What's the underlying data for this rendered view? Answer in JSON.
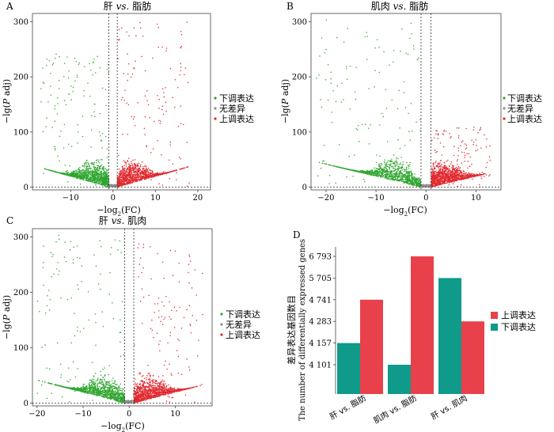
{
  "figure": {
    "panels": [
      {
        "letter": "A",
        "title_pre": "肝 ",
        "title_em": "vs.",
        "title_post": " 脂肪"
      },
      {
        "letter": "B",
        "title_pre": "肌肉 ",
        "title_em": "vs.",
        "title_post": " 脂肪"
      },
      {
        "letter": "C",
        "title_pre": "肝 ",
        "title_em": "vs.",
        "title_post": " 肌肉"
      },
      {
        "letter": "D"
      }
    ],
    "volcano_ylabel_pre": "−lg(",
    "volcano_ylabel_em": "P",
    "volcano_ylabel_post": " adj)",
    "volcano_xlabel_pre": "−log",
    "volcano_xlabel_sub": "2",
    "volcano_xlabel_post": "(FC)",
    "volcano_legend": [
      "下调表达",
      "无差异",
      "上调表达"
    ],
    "bar_ylabel_cn": "差异表达基因数目",
    "bar_ylabel_en": "The number of differentially expressed genes",
    "bar_legend": [
      "上调表达",
      "下调表达"
    ]
  },
  "colors": {
    "down": "#2fa62f",
    "none": "#8c8c8c",
    "up": "#e0292f",
    "bar_up": "#e8414b",
    "bar_down": "#0f9a8a"
  },
  "chart_data": [
    {
      "type": "scatter",
      "title": "肝 vs. 脂肪",
      "xlabel": "−log2(FC)",
      "ylabel": "−lg(P adj)",
      "xlim": [
        -19,
        23
      ],
      "ylim": [
        -5,
        315
      ],
      "xticks": [
        -10,
        0,
        10,
        20
      ],
      "yticks": [
        0,
        100,
        200,
        300
      ],
      "thresholds": {
        "x": [
          -1,
          1
        ],
        "y": 0
      },
      "legend": [
        "下调表达",
        "无差异",
        "上调表达"
      ],
      "legend_position": "right",
      "points": {
        "down": {
          "x_range": [
            -17,
            -1
          ],
          "peak_x": -4,
          "max_y": 245
        },
        "up": {
          "x_range": [
            1,
            18
          ],
          "peak_x": 4,
          "max_y": 300
        },
        "none": {
          "x_range": [
            -1,
            1
          ],
          "max_y": 5
        }
      }
    },
    {
      "type": "scatter",
      "title": "肌肉 vs. 脂肪",
      "xlabel": "−log2(FC)",
      "ylabel": "−lg(P adj)",
      "xlim": [
        -23,
        15
      ],
      "ylim": [
        -5,
        315
      ],
      "xticks": [
        -20,
        -10,
        0,
        10
      ],
      "yticks": [
        0,
        100,
        200,
        300
      ],
      "thresholds": {
        "x": [
          -1,
          1
        ],
        "y": 0
      },
      "legend": [
        "下调表达",
        "无差异",
        "上调表达"
      ],
      "legend_position": "right",
      "points": {
        "down": {
          "x_range": [
            -22,
            -1
          ],
          "peak_x": -6,
          "max_y": 305
        },
        "up": {
          "x_range": [
            1,
            13
          ],
          "peak_x": 3,
          "max_y": 110
        },
        "none": {
          "x_range": [
            -1,
            1
          ],
          "max_y": 5
        }
      }
    },
    {
      "type": "scatter",
      "title": "肝 vs. 肌肉",
      "xlabel": "−log2(FC)",
      "ylabel": "−lg(P adj)",
      "xlim": [
        -21,
        18
      ],
      "ylim": [
        -5,
        315
      ],
      "xticks": [
        -20,
        -10,
        0,
        10
      ],
      "yticks": [
        0,
        100,
        200,
        300
      ],
      "thresholds": {
        "x": [
          -1,
          1
        ],
        "y": 0
      },
      "legend": [
        "下调表达",
        "无差异",
        "上调表达"
      ],
      "legend_position": "right",
      "points": {
        "down": {
          "x_range": [
            -20,
            -1
          ],
          "peak_x": -5,
          "max_y": 305
        },
        "up": {
          "x_range": [
            1,
            16
          ],
          "peak_x": 4,
          "max_y": 295
        },
        "none": {
          "x_range": [
            -1,
            1
          ],
          "max_y": 5
        }
      }
    },
    {
      "type": "bar",
      "ylabel": "差异表达基因数目 The number of differentially expressed genes",
      "categories": [
        "肝 vs. 脂肪",
        "肌肉 vs. 脂肪",
        "肝 vs. 肌肉"
      ],
      "yticks": [
        "4 101",
        "4 157",
        "4 283",
        "4 741",
        "5 705",
        "6 793"
      ],
      "series": [
        {
          "name": "上调表达",
          "values": [
            4741,
            6793,
            4283
          ]
        },
        {
          "name": "下调表达",
          "values": [
            4157,
            4101,
            5705
          ]
        }
      ],
      "legend_position": "right"
    }
  ]
}
